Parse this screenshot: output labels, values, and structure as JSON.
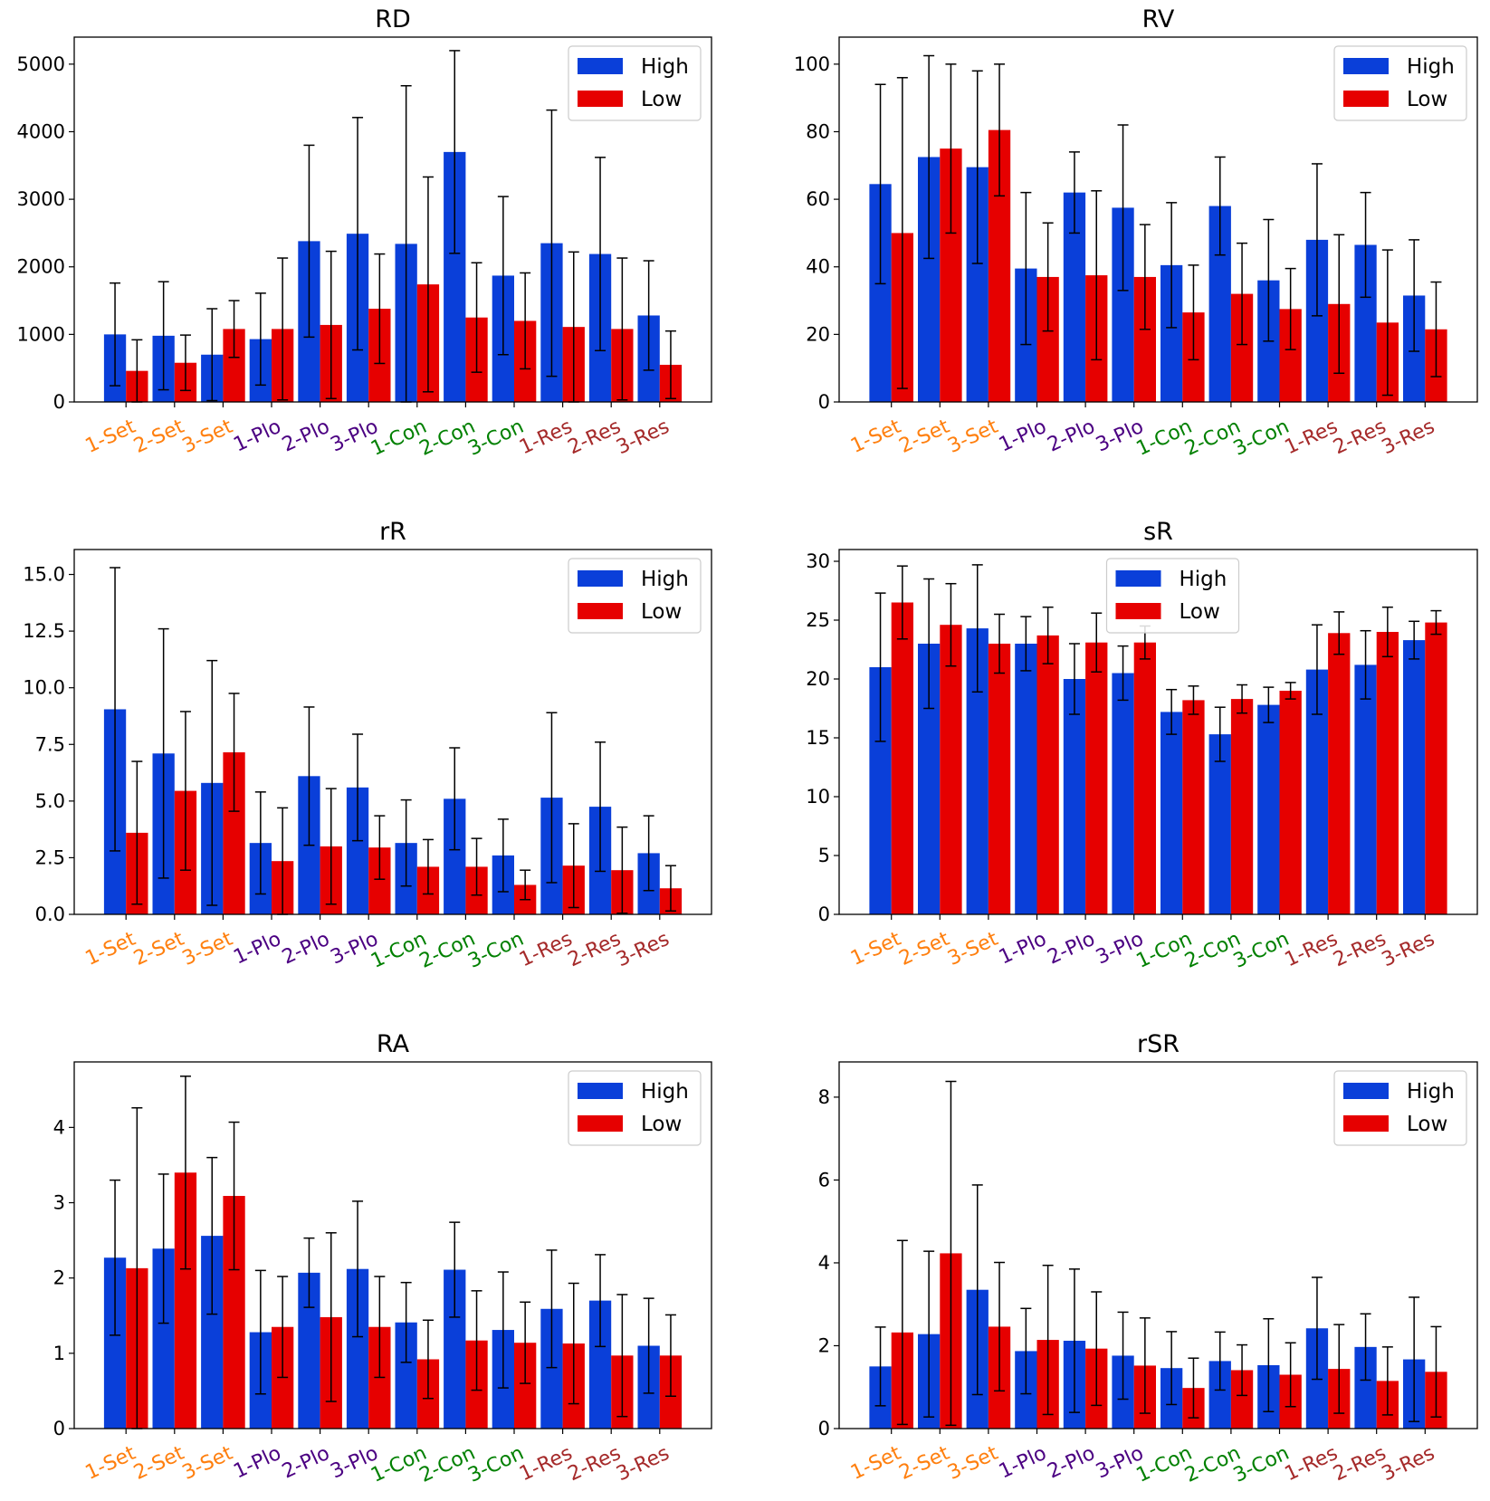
{
  "colors": {
    "high": "#0a3fd9",
    "low": "#e60000",
    "groups": {
      "Set": "#ff7f0e",
      "Plo": "#4b0082",
      "Con": "#008000",
      "Res": "#a52a2a"
    }
  },
  "chart_data": [
    {
      "type": "bar",
      "title": "RD",
      "categories": [
        "1-Set",
        "2-Set",
        "3-Set",
        "1-Plo",
        "2-Plo",
        "3-Plo",
        "1-Con",
        "2-Con",
        "3-Con",
        "1-Res",
        "2-Res",
        "3-Res"
      ],
      "ylim": [
        0,
        5400
      ],
      "yticks": [
        0,
        1000,
        2000,
        3000,
        4000,
        5000
      ],
      "yticklabels": [
        "0",
        "1000",
        "2000",
        "3000",
        "4000",
        "5000"
      ],
      "legend": {
        "entries": [
          "High",
          "Low"
        ],
        "placement": "top-right"
      },
      "series": [
        {
          "name": "High",
          "values": [
            1000,
            980,
            700,
            930,
            2380,
            2490,
            2340,
            3700,
            1870,
            2350,
            2190,
            1280
          ],
          "err": [
            760,
            800,
            680,
            680,
            1420,
            1720,
            2340,
            1500,
            1170,
            1970,
            1430,
            810
          ]
        },
        {
          "name": "Low",
          "values": [
            460,
            580,
            1080,
            1080,
            1140,
            1380,
            1740,
            1250,
            1200,
            1110,
            1080,
            550
          ],
          "err": [
            460,
            410,
            420,
            1050,
            1090,
            810,
            1590,
            810,
            710,
            1110,
            1050,
            500
          ]
        }
      ]
    },
    {
      "type": "bar",
      "title": "RV",
      "categories": [
        "1-Set",
        "2-Set",
        "3-Set",
        "1-Plo",
        "2-Plo",
        "3-Plo",
        "1-Con",
        "2-Con",
        "3-Con",
        "1-Res",
        "2-Res",
        "3-Res"
      ],
      "ylim": [
        0,
        108
      ],
      "yticks": [
        0,
        20,
        40,
        60,
        80,
        100
      ],
      "yticklabels": [
        "0",
        "20",
        "40",
        "60",
        "80",
        "100"
      ],
      "legend": {
        "entries": [
          "High",
          "Low"
        ],
        "placement": "top-right"
      },
      "series": [
        {
          "name": "High",
          "values": [
            64.5,
            72.5,
            69.5,
            39.5,
            62,
            57.5,
            40.5,
            58,
            36,
            48,
            46.5,
            31.5
          ],
          "err": [
            29.5,
            30,
            28.5,
            22.5,
            12,
            24.5,
            18.5,
            14.5,
            18,
            22.5,
            15.5,
            16.5
          ]
        },
        {
          "name": "Low",
          "values": [
            50,
            75,
            80.5,
            37,
            37.5,
            37,
            26.5,
            32,
            27.5,
            29,
            23.5,
            21.5
          ],
          "err": [
            46,
            25,
            19.5,
            16,
            25,
            15.5,
            14,
            15,
            12,
            20.5,
            21.5,
            14
          ]
        }
      ]
    },
    {
      "type": "bar",
      "title": "rR",
      "categories": [
        "1-Set",
        "2-Set",
        "3-Set",
        "1-Plo",
        "2-Plo",
        "3-Plo",
        "1-Con",
        "2-Con",
        "3-Con",
        "1-Res",
        "2-Res",
        "3-Res"
      ],
      "ylim": [
        0,
        16.1
      ],
      "yticks": [
        0,
        2.5,
        5,
        7.5,
        10,
        12.5,
        15
      ],
      "yticklabels": [
        "0.0",
        "2.5",
        "5.0",
        "7.5",
        "10.0",
        "12.5",
        "15.0"
      ],
      "legend": {
        "entries": [
          "High",
          "Low"
        ],
        "placement": "top-right"
      },
      "series": [
        {
          "name": "High",
          "values": [
            9.05,
            7.1,
            5.8,
            3.15,
            6.1,
            5.6,
            3.15,
            5.1,
            2.6,
            5.15,
            4.75,
            2.7
          ],
          "err": [
            6.25,
            5.5,
            5.4,
            2.25,
            3.05,
            2.35,
            1.9,
            2.25,
            1.6,
            3.75,
            2.85,
            1.65
          ]
        },
        {
          "name": "Low",
          "values": [
            3.6,
            5.45,
            7.15,
            2.35,
            3.0,
            2.95,
            2.1,
            2.1,
            1.3,
            2.15,
            1.95,
            1.15
          ],
          "err": [
            3.15,
            3.5,
            2.6,
            2.35,
            2.55,
            1.4,
            1.2,
            1.25,
            0.65,
            1.85,
            1.9,
            1.0
          ]
        }
      ]
    },
    {
      "type": "bar",
      "title": "sR",
      "categories": [
        "1-Set",
        "2-Set",
        "3-Set",
        "1-Plo",
        "2-Plo",
        "3-Plo",
        "1-Con",
        "2-Con",
        "3-Con",
        "1-Res",
        "2-Res",
        "3-Res"
      ],
      "ylim": [
        0,
        31
      ],
      "yticks": [
        0,
        5,
        10,
        15,
        20,
        25,
        30
      ],
      "yticklabels": [
        "0",
        "5",
        "10",
        "15",
        "20",
        "25",
        "30"
      ],
      "legend": {
        "entries": [
          "High",
          "Low"
        ],
        "placement": "top-center"
      },
      "series": [
        {
          "name": "High",
          "values": [
            21,
            23,
            24.3,
            23,
            20,
            20.5,
            17.2,
            15.3,
            17.8,
            20.8,
            21.2,
            23.3
          ],
          "err": [
            6.3,
            5.5,
            5.4,
            2.3,
            3,
            2.3,
            1.9,
            2.3,
            1.5,
            3.8,
            2.9,
            1.6
          ]
        },
        {
          "name": "Low",
          "values": [
            26.5,
            24.6,
            23,
            23.7,
            23.1,
            23.1,
            18.2,
            18.3,
            19,
            23.9,
            24,
            24.8
          ],
          "err": [
            3.1,
            3.5,
            2.5,
            2.4,
            2.5,
            1.4,
            1.2,
            1.2,
            0.7,
            1.8,
            2.1,
            1.0
          ]
        }
      ]
    },
    {
      "type": "bar",
      "title": "RA",
      "categories": [
        "1-Set",
        "2-Set",
        "3-Set",
        "1-Plo",
        "2-Plo",
        "3-Plo",
        "1-Con",
        "2-Con",
        "3-Con",
        "1-Res",
        "2-Res",
        "3-Res"
      ],
      "ylim": [
        0,
        4.87
      ],
      "yticks": [
        0,
        1,
        2,
        3,
        4
      ],
      "yticklabels": [
        "0",
        "1",
        "2",
        "3",
        "4"
      ],
      "legend": {
        "entries": [
          "High",
          "Low"
        ],
        "placement": "top-right"
      },
      "series": [
        {
          "name": "High",
          "values": [
            2.27,
            2.39,
            2.56,
            1.28,
            2.07,
            2.12,
            1.41,
            2.11,
            1.31,
            1.59,
            1.7,
            1.1
          ],
          "err": [
            1.03,
            0.99,
            1.04,
            0.82,
            0.46,
            0.9,
            0.53,
            0.63,
            0.77,
            0.78,
            0.61,
            0.63
          ]
        },
        {
          "name": "Low",
          "values": [
            2.13,
            3.4,
            3.09,
            1.35,
            1.48,
            1.35,
            0.92,
            1.17,
            1.14,
            1.13,
            0.97,
            0.97
          ],
          "err": [
            2.13,
            1.28,
            0.98,
            0.67,
            1.12,
            0.67,
            0.52,
            0.66,
            0.54,
            0.8,
            0.81,
            0.54
          ]
        }
      ]
    },
    {
      "type": "bar",
      "title": "rSR",
      "categories": [
        "1-Set",
        "2-Set",
        "3-Set",
        "1-Plo",
        "2-Plo",
        "3-Plo",
        "1-Con",
        "2-Con",
        "3-Con",
        "1-Res",
        "2-Res",
        "3-Res"
      ],
      "ylim": [
        0,
        8.85
      ],
      "yticks": [
        0,
        2,
        4,
        6,
        8
      ],
      "yticklabels": [
        "0",
        "2",
        "4",
        "6",
        "8"
      ],
      "legend": {
        "entries": [
          "High",
          "Low"
        ],
        "placement": "top-right"
      },
      "series": [
        {
          "name": "High",
          "values": [
            1.5,
            2.28,
            3.35,
            1.87,
            2.12,
            1.76,
            1.46,
            1.63,
            1.53,
            2.42,
            1.97,
            1.67
          ],
          "err": [
            0.95,
            2.0,
            2.53,
            1.03,
            1.73,
            1.05,
            0.88,
            0.7,
            1.12,
            1.23,
            0.8,
            1.5
          ]
        },
        {
          "name": "Low",
          "values": [
            2.32,
            4.23,
            2.46,
            2.14,
            1.93,
            1.52,
            0.98,
            1.41,
            1.3,
            1.44,
            1.15,
            1.37
          ],
          "err": [
            2.22,
            4.15,
            1.55,
            1.8,
            1.37,
            1.15,
            0.72,
            0.61,
            0.77,
            1.07,
            0.82,
            1.09
          ]
        }
      ]
    }
  ]
}
